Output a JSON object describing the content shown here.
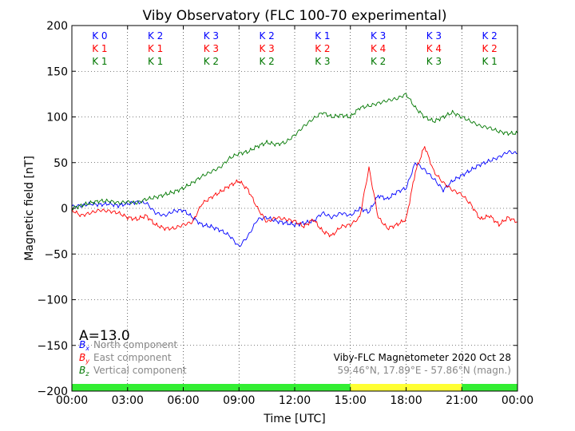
{
  "chart_data": {
    "type": "line",
    "title": "Viby Observatory (FLC 100-70 experimental)",
    "xlabel": "Time [UTC]",
    "ylabel": "Magnetic field [nT]",
    "xlim": [
      0,
      24
    ],
    "ylim": [
      -200,
      200
    ],
    "x_ticks": [
      {
        "value": 0,
        "label": "00:00"
      },
      {
        "value": 3,
        "label": "03:00"
      },
      {
        "value": 6,
        "label": "06:00"
      },
      {
        "value": 9,
        "label": "09:00"
      },
      {
        "value": 12,
        "label": "12:00"
      },
      {
        "value": 15,
        "label": "15:00"
      },
      {
        "value": 18,
        "label": "18:00"
      },
      {
        "value": 21,
        "label": "21:00"
      },
      {
        "value": 24,
        "label": "00:00"
      }
    ],
    "y_ticks": [
      {
        "value": 200,
        "label": "200"
      },
      {
        "value": 150,
        "label": "150"
      },
      {
        "value": 100,
        "label": "100"
      },
      {
        "value": 50,
        "label": "50"
      },
      {
        "value": 0,
        "label": "0"
      },
      {
        "value": -50,
        "label": "−50"
      },
      {
        "value": -100,
        "label": "−100"
      },
      {
        "value": -150,
        "label": "−150"
      },
      {
        "value": -200,
        "label": "−200"
      }
    ],
    "grid": true,
    "x_hours": [
      0,
      0.5,
      1,
      1.5,
      2,
      2.5,
      3,
      3.5,
      4,
      4.5,
      5,
      5.5,
      6,
      6.5,
      7,
      7.5,
      8,
      8.5,
      9,
      9.5,
      10,
      10.5,
      11,
      11.5,
      12,
      12.5,
      13,
      13.5,
      14,
      14.5,
      15,
      15.5,
      16,
      16.5,
      17,
      17.5,
      18,
      18.5,
      19,
      19.5,
      20,
      20.5,
      21,
      21.5,
      22,
      22.5,
      23,
      23.5,
      24
    ],
    "series": [
      {
        "label_main": "B",
        "label_sub": "x",
        "label_text": "North component",
        "color": "#0000ff",
        "values": [
          2,
          3,
          5,
          4,
          5,
          3,
          5,
          7,
          6,
          -5,
          -8,
          -3,
          -2,
          -10,
          -18,
          -20,
          -24,
          -30,
          -42,
          -30,
          -12,
          -10,
          -14,
          -16,
          -18,
          -16,
          -14,
          -5,
          -10,
          -5,
          -8,
          0,
          -4,
          14,
          10,
          18,
          22,
          50,
          42,
          32,
          20,
          30,
          36,
          42,
          48,
          52,
          56,
          62,
          60
        ]
      },
      {
        "label_main": "B",
        "label_sub": "y",
        "label_text": "East component",
        "color": "#ff0000",
        "values": [
          -2,
          -8,
          -5,
          -2,
          -3,
          -5,
          -10,
          -12,
          -8,
          -18,
          -22,
          -22,
          -18,
          -15,
          5,
          12,
          18,
          25,
          30,
          20,
          0,
          -15,
          -10,
          -12,
          -14,
          -20,
          -12,
          -25,
          -30,
          -20,
          -18,
          -10,
          44,
          -10,
          -22,
          -18,
          -12,
          40,
          68,
          40,
          28,
          20,
          15,
          4,
          -12,
          -8,
          -18,
          -10,
          -15
        ]
      },
      {
        "label_main": "B",
        "label_sub": "z",
        "label_text": "Vertical component",
        "color": "#007700",
        "values": [
          0,
          3,
          6,
          8,
          8,
          6,
          7,
          6,
          10,
          12,
          15,
          18,
          22,
          28,
          35,
          40,
          45,
          55,
          60,
          62,
          68,
          72,
          70,
          72,
          80,
          90,
          98,
          105,
          100,
          102,
          100,
          110,
          112,
          115,
          118,
          120,
          125,
          110,
          100,
          95,
          100,
          105,
          100,
          95,
          90,
          88,
          84,
          82,
          82
        ]
      }
    ],
    "k_indices": {
      "x": [
        1.5,
        4.5,
        7.5,
        10.5,
        13.5,
        16.5,
        19.5,
        22.5
      ],
      "rows": [
        {
          "color": "#0000ff",
          "labels": [
            "K 0",
            "K 2",
            "K 3",
            "K 2",
            "K 1",
            "K 3",
            "K 3",
            "K 2"
          ]
        },
        {
          "color": "#ff0000",
          "labels": [
            "K 1",
            "K 1",
            "K 3",
            "K 3",
            "K 2",
            "K 4",
            "K 4",
            "K 2"
          ]
        },
        {
          "color": "#007700",
          "labels": [
            "K 1",
            "K 1",
            "K 2",
            "K 2",
            "K 3",
            "K 2",
            "K 3",
            "K 1"
          ]
        }
      ]
    },
    "activity_bar": [
      {
        "from": 0,
        "to": 15,
        "color": "#33ee33"
      },
      {
        "from": 15,
        "to": 21,
        "color": "#ffff33"
      },
      {
        "from": 21,
        "to": 24,
        "color": "#33ee33"
      }
    ],
    "a_index": "A=13.0",
    "info_line1": "Viby-FLC Magnetometer 2020 Oct 28",
    "info_line2": "59.46°N, 17.89°E - 57.86°N (magn.)"
  }
}
